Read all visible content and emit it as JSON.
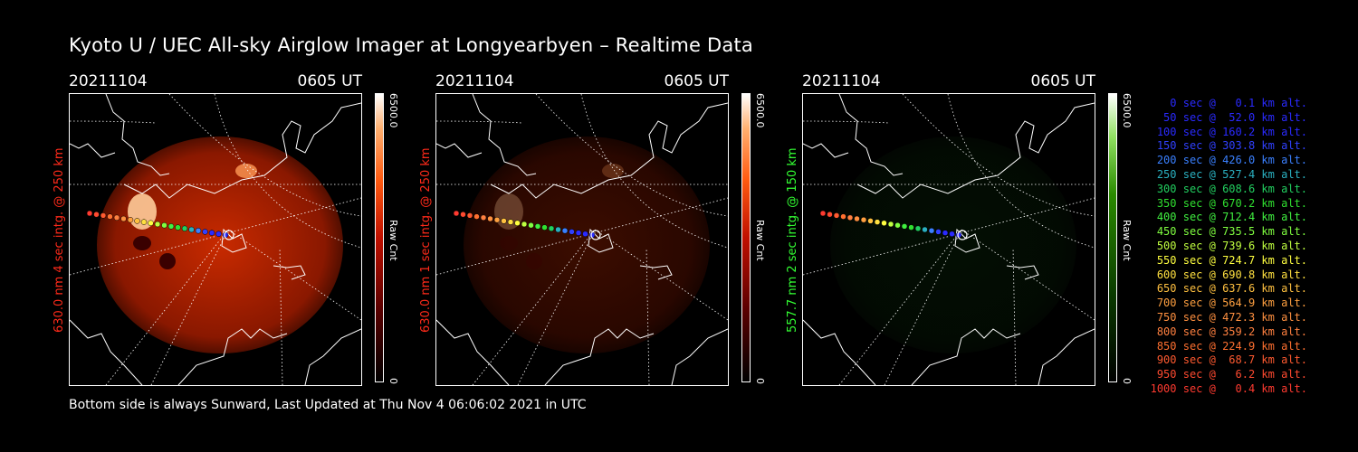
{
  "title": "Kyoto U / UEC All-sky Airglow Imager at Longyearbyen – Realtime Data",
  "footer": "Bottom side is always Sunward, Last Updated at Thu Nov  4 06:06:02 2021 in UTC",
  "panels": [
    {
      "date": "20211104",
      "time": "0605 UT",
      "ylabel": "630.0 nm 4 sec intg. @ 250 km",
      "label_color": "#ff2a1a",
      "cbar_max": "6500.0",
      "cbar_min": "0",
      "cbar_label": "Raw Cnt",
      "cmap": "red",
      "brightness": 1.0
    },
    {
      "date": "20211104",
      "time": "0605 UT",
      "ylabel": "630.0 nm 1 sec intg. @ 250 km",
      "label_color": "#ff2a1a",
      "cbar_max": "6500.0",
      "cbar_min": "0",
      "cbar_label": "Raw Cnt",
      "cmap": "red",
      "brightness": 0.3
    },
    {
      "date": "20211104",
      "time": "0605 UT",
      "ylabel": "557.7 nm 2 sec intg. @ 150 km",
      "label_color": "#33ff33",
      "cbar_max": "6500.0",
      "cbar_min": "0",
      "cbar_label": "Raw Cnt",
      "cmap": "green",
      "brightness": 0.25
    }
  ],
  "legend": [
    {
      "text": "0 sec @   0.1 km alt.",
      "color": "#2a2aff"
    },
    {
      "text": "50 sec @  52.0 km alt.",
      "color": "#2a2aff"
    },
    {
      "text": "100 sec @ 160.2 km alt.",
      "color": "#2a2aff"
    },
    {
      "text": "150 sec @ 303.8 km alt.",
      "color": "#3040ff"
    },
    {
      "text": "200 sec @ 426.0 km alt.",
      "color": "#3a80ff"
    },
    {
      "text": "250 sec @ 527.4 km alt.",
      "color": "#2ab0c0"
    },
    {
      "text": "300 sec @ 608.6 km alt.",
      "color": "#22d060"
    },
    {
      "text": "350 sec @ 670.2 km alt.",
      "color": "#30e030"
    },
    {
      "text": "400 sec @ 712.4 km alt.",
      "color": "#40f040"
    },
    {
      "text": "450 sec @ 735.5 km alt.",
      "color": "#80ff40"
    },
    {
      "text": "500 sec @ 739.6 km alt.",
      "color": "#c0ff40"
    },
    {
      "text": "550 sec @ 724.7 km alt.",
      "color": "#ffff40"
    },
    {
      "text": "600 sec @ 690.8 km alt.",
      "color": "#ffe040"
    },
    {
      "text": "650 sec @ 637.6 km alt.",
      "color": "#ffc040"
    },
    {
      "text": "700 sec @ 564.9 km alt.",
      "color": "#ffa040"
    },
    {
      "text": "750 sec @ 472.3 km alt.",
      "color": "#ff9040"
    },
    {
      "text": "800 sec @ 359.2 km alt.",
      "color": "#ff8040"
    },
    {
      "text": "850 sec @ 224.9 km alt.",
      "color": "#ff7030"
    },
    {
      "text": "900 sec @  68.7 km alt.",
      "color": "#ff5a30"
    },
    {
      "text": "950 sec @   6.2 km alt.",
      "color": "#ff4a30"
    },
    {
      "text": "1000 sec @   0.4 km alt.",
      "color": "#ff3a30"
    }
  ]
}
